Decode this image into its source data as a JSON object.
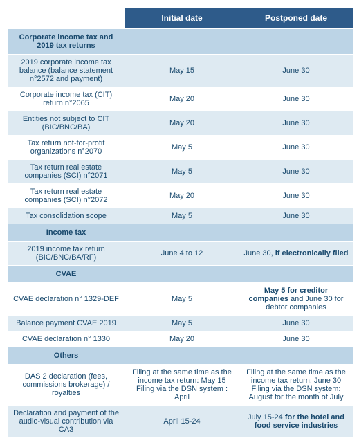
{
  "colors": {
    "header_bg": "#2e5b8a",
    "header_text": "#ffffff",
    "section_bg": "#bcd4e6",
    "row_even_bg": "#deeaf2",
    "row_odd_bg": "#ffffff",
    "text": "#1a4a6e",
    "border": "#ffffff"
  },
  "header": {
    "initial": "Initial date",
    "postponed": "Postponed date"
  },
  "sections": {
    "corp": "Corporate income tax and 2019 tax returns",
    "income": "Income tax",
    "cvae": "CVAE",
    "others": "Others"
  },
  "rows": {
    "corp1": {
      "label": "2019 corporate income tax balance (balance statement n°2572 and payment)",
      "initial": "May 15",
      "postponed": "June 30"
    },
    "corp2": {
      "label": "Corporate income tax (CIT) return n°2065",
      "initial": "May 20",
      "postponed": "June 30"
    },
    "corp3": {
      "label": "Entities not subject to CIT (BIC/BNC/BA)",
      "initial": "May 20",
      "postponed": "June 30"
    },
    "corp4": {
      "label": "Tax return not-for-profit organizations n°2070",
      "initial": "May 5",
      "postponed": "June 30"
    },
    "corp5": {
      "label": "Tax return real estate companies (SCI) n°2071",
      "initial": "May 5",
      "postponed": "June 30"
    },
    "corp6": {
      "label": "Tax return real estate companies (SCI) n°2072",
      "initial": "May 20",
      "postponed": "June 30"
    },
    "corp7": {
      "label": "Tax consolidation scope",
      "initial": "May 5",
      "postponed": "June 30"
    },
    "inc1": {
      "label": "2019 income tax return (BIC/BNC/BA/RF)",
      "initial": "June 4 to 12",
      "postponed_pre": "June 30, ",
      "postponed_bold": "if electronically filed"
    },
    "cvae1": {
      "label": "CVAE declaration n° 1329-DEF",
      "initial": "May 5",
      "postponed_bold": "May 5 for creditor companies",
      "postponed_post": " and June 30 for debtor companies"
    },
    "cvae2": {
      "label": "Balance payment CVAE 2019",
      "initial": "May 5",
      "postponed": "June 30"
    },
    "cvae3": {
      "label": "CVAE declaration n° 1330",
      "initial": "May 20",
      "postponed": "June 30"
    },
    "oth1": {
      "label": "DAS 2 declaration (fees, commissions brokerage) / royalties",
      "initial": "Filing at the same time as the income tax return: May 15\nFiling via the DSN system : April",
      "postponed": "Filing at the same time as the income tax return: June 30\nFiling via the DSN system: August for the month of July"
    },
    "oth2": {
      "label": "Declaration and payment of the audio-visual contribution via CA3",
      "initial": "April 15-24",
      "postponed_pre": "July 15-24 ",
      "postponed_bold": "for the hotel and food service industries"
    }
  }
}
